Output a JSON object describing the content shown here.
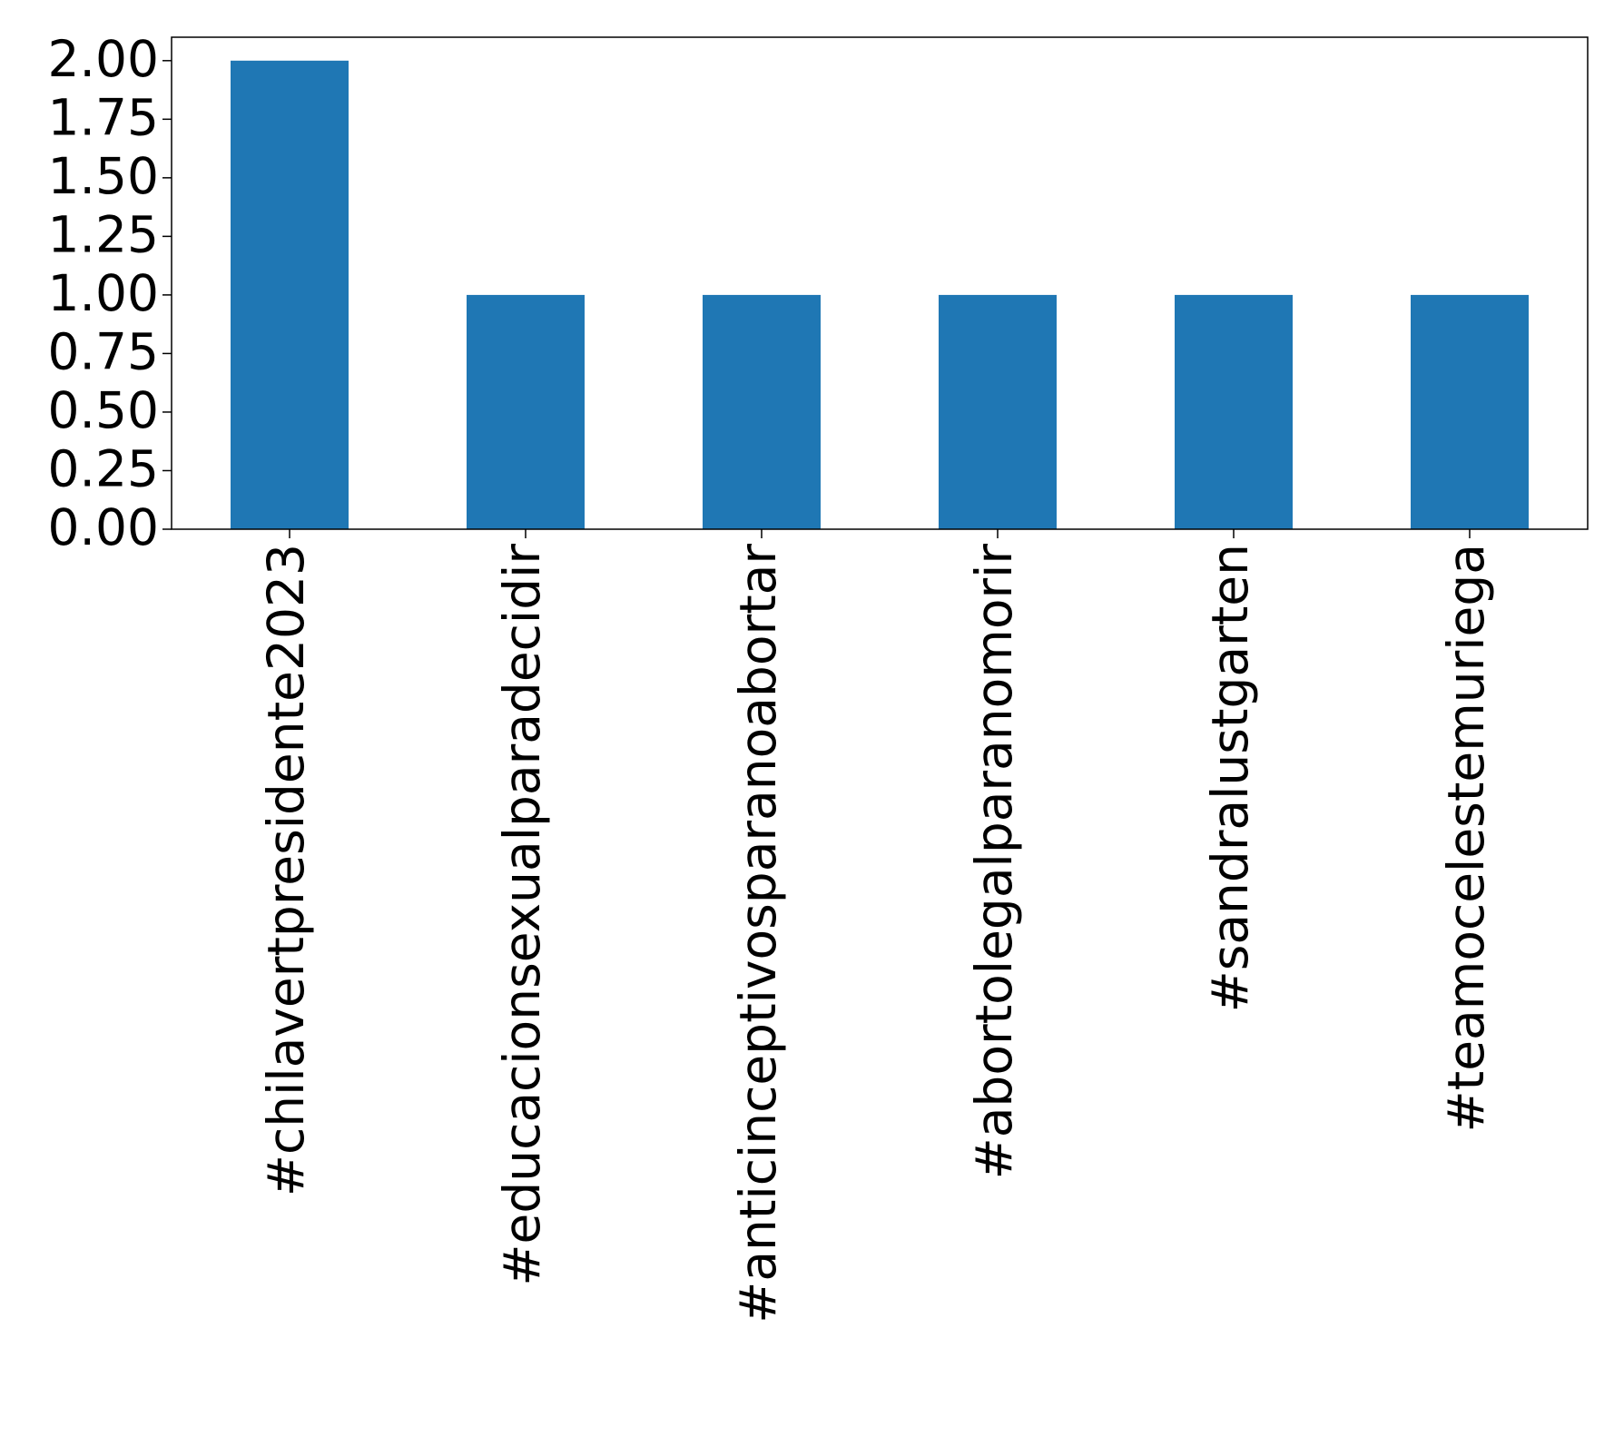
{
  "chart_data": {
    "type": "bar",
    "categories": [
      "#chilavertpresidente2023",
      "#educacionsexualparadecidir",
      "#anticinceptivosparanoabortar",
      "#abortolegalparanomorir",
      "#sandralustgarten",
      "#teamocelestemuriega"
    ],
    "values": [
      2,
      1,
      1,
      1,
      1,
      1
    ],
    "color": "#1f77b4",
    "ylim": [
      0,
      2.1
    ],
    "yticks": [
      {
        "value": 0,
        "label": "0.00"
      },
      {
        "value": 0.25,
        "label": "0.25"
      },
      {
        "value": 0.5,
        "label": "0.50"
      },
      {
        "value": 0.75,
        "label": "0.75"
      },
      {
        "value": 1,
        "label": "1.00"
      },
      {
        "value": 1.25,
        "label": "1.25"
      },
      {
        "value": 1.5,
        "label": "1.50"
      },
      {
        "value": 1.75,
        "label": "1.75"
      },
      {
        "value": 2,
        "label": "2.00"
      }
    ],
    "grid": false
  }
}
